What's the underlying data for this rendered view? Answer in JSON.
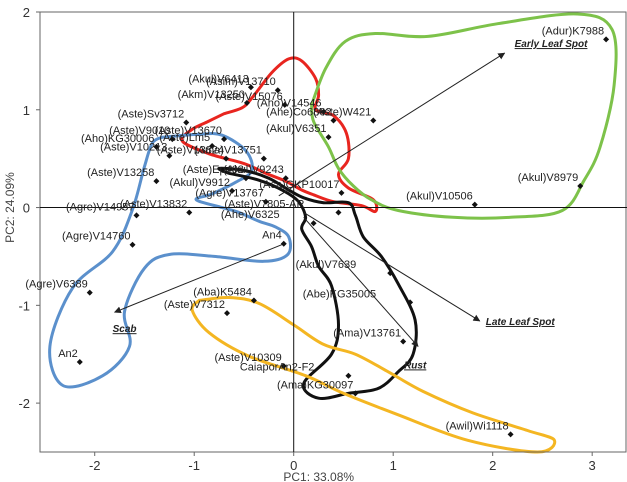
{
  "chart_data": {
    "type": "scatter",
    "title": "",
    "xlabel": "PC1: 33.08%",
    "ylabel": "PC2: 24.09%",
    "xlim": [
      -2.55,
      3.35
    ],
    "ylim": [
      -2.5,
      2.0
    ],
    "xticks": [
      -2,
      -1,
      0,
      1,
      2,
      3
    ],
    "yticks": [
      -2,
      -1,
      0,
      1,
      2
    ],
    "grid": false,
    "points": [
      {
        "label": "(Adur)K7988",
        "x": 3.14,
        "y": 1.72
      },
      {
        "label": "(Akul)V8979",
        "x": 2.88,
        "y": 0.22
      },
      {
        "label": "(Akul)V10506",
        "x": 1.82,
        "y": 0.03
      },
      {
        "label": "(Akul)V6413",
        "x": -0.43,
        "y": 1.23
      },
      {
        "label": "(Asim)V13710",
        "x": -0.16,
        "y": 1.2
      },
      {
        "label": "(Akm)V13250",
        "x": -0.47,
        "y": 1.07
      },
      {
        "label": "(Aste)V15076",
        "x": -0.09,
        "y": 1.05
      },
      {
        "label": "(Aho)V14546",
        "x": 0.3,
        "y": 0.98
      },
      {
        "label": "(Ahe)Co6862",
        "x": 0.4,
        "y": 0.89
      },
      {
        "label": "(Aste)W421",
        "x": 0.8,
        "y": 0.89
      },
      {
        "label": "(Aste)Sv3712",
        "x": -1.08,
        "y": 0.87
      },
      {
        "label": "(Aste)V9010",
        "x": -1.22,
        "y": 0.7
      },
      {
        "label": "(Aste)V13670",
        "x": -0.7,
        "y": 0.7
      },
      {
        "label": "(Akul)V6351",
        "x": 0.35,
        "y": 0.72
      },
      {
        "label": "(Aho)KG30006",
        "x": -1.38,
        "y": 0.62
      },
      {
        "label": "(Aste)Lm5",
        "x": -0.82,
        "y": 0.63
      },
      {
        "label": "(Aste)V10213",
        "x": -1.25,
        "y": 0.53
      },
      {
        "label": "(Ama)V13751",
        "x": -0.3,
        "y": 0.5
      },
      {
        "label": "(Aste)V13824",
        "x": -0.68,
        "y": 0.5
      },
      {
        "label": "(Aste)V13258",
        "x": -1.38,
        "y": 0.27
      },
      {
        "label": "(Aste)Ep408",
        "x": -0.48,
        "y": 0.3
      },
      {
        "label": "(Akul)V9243",
        "x": -0.08,
        "y": 0.3
      },
      {
        "label": "(Akul)V9912",
        "x": -0.62,
        "y": 0.17
      },
      {
        "label": "(Aca)GKP10017",
        "x": 0.48,
        "y": 0.15
      },
      {
        "label": "(Agre)V13767",
        "x": -0.28,
        "y": 0.06
      },
      {
        "label": "(Agre)V14957",
        "x": -1.58,
        "y": -0.08
      },
      {
        "label": "(Aste)V13832",
        "x": -1.05,
        "y": -0.05
      },
      {
        "label": "(Aste)V7805-AR",
        "x": 0.45,
        "y": -0.05
      },
      {
        "label": "(Ahe)V6325",
        "x": 0.2,
        "y": -0.16
      },
      {
        "label": "(Agre)V14760",
        "x": -1.62,
        "y": -0.38
      },
      {
        "label": "An4",
        "x": -0.1,
        "y": -0.37
      },
      {
        "label": "(Akul)V7639",
        "x": 0.97,
        "y": -0.67
      },
      {
        "label": "(Agre)V6389",
        "x": -2.05,
        "y": -0.87
      },
      {
        "label": "(Abe)KG35005",
        "x": 1.17,
        "y": -0.97
      },
      {
        "label": "(Aba)K5484",
        "x": -0.4,
        "y": -0.95
      },
      {
        "label": "(Aste)V7312",
        "x": -0.67,
        "y": -1.08
      },
      {
        "label": "(Ama)V13761",
        "x": 1.1,
        "y": -1.37
      },
      {
        "label": "An2",
        "x": -2.15,
        "y": -1.58
      },
      {
        "label": "(Aste)V10309",
        "x": -0.1,
        "y": -1.62
      },
      {
        "label": "CaiaporAn2-F2",
        "x": 0.55,
        "y": -1.72
      },
      {
        "label": "(Ama)KG30097",
        "x": 0.62,
        "y": -1.9
      },
      {
        "label": "(Awil)Wi1118",
        "x": 2.18,
        "y": -2.32
      }
    ],
    "arrows": [
      {
        "label": "Early Leaf Spot",
        "from": [
          -0.15,
          0.12
        ],
        "to": [
          2.12,
          1.58
        ]
      },
      {
        "label": "Late Leaf Spot",
        "from": [
          0.1,
          -0.05
        ],
        "to": [
          1.87,
          -1.16
        ]
      },
      {
        "label": "Rust",
        "from": [
          0.1,
          -0.1
        ],
        "to": [
          1.25,
          -1.42
        ]
      },
      {
        "label": "Scab",
        "from": [
          -0.12,
          -0.38
        ],
        "to": [
          -1.8,
          -1.07
        ]
      }
    ],
    "clusters": [
      {
        "color": "#e8251f",
        "path": [
          [
            -0.7,
            0.96
          ],
          [
            -0.52,
            1.02
          ],
          [
            -0.42,
            1.12
          ],
          [
            -0.22,
            1.38
          ],
          [
            -0.05,
            1.52
          ],
          [
            0.08,
            1.5
          ],
          [
            0.22,
            1.32
          ],
          [
            0.25,
            1.15
          ],
          [
            0.22,
            1.0
          ],
          [
            0.4,
            0.94
          ],
          [
            0.53,
            0.76
          ],
          [
            0.55,
            0.5
          ],
          [
            0.45,
            0.34
          ],
          [
            0.55,
            0.2
          ],
          [
            0.8,
            0.08
          ],
          [
            0.82,
            -0.04
          ],
          [
            0.68,
            0.02
          ],
          [
            0.4,
            0.06
          ],
          [
            0.2,
            0.13
          ],
          [
            0.08,
            0.18
          ],
          [
            -0.08,
            0.27
          ],
          [
            -0.28,
            0.35
          ],
          [
            -0.5,
            0.45
          ],
          [
            -0.85,
            0.55
          ],
          [
            -1.12,
            0.68
          ],
          [
            -1.02,
            0.8
          ],
          [
            -0.86,
            0.88
          ],
          [
            -0.7,
            0.96
          ]
        ]
      },
      {
        "color": "#7dc24a",
        "path": [
          [
            0.18,
            1.05
          ],
          [
            0.32,
            1.42
          ],
          [
            0.52,
            1.7
          ],
          [
            0.82,
            1.78
          ],
          [
            1.35,
            1.75
          ],
          [
            2.05,
            1.88
          ],
          [
            2.85,
            1.98
          ],
          [
            3.2,
            1.82
          ],
          [
            3.22,
            1.25
          ],
          [
            3.08,
            0.62
          ],
          [
            2.92,
            0.28
          ],
          [
            2.7,
            -0.03
          ],
          [
            2.18,
            -0.1
          ],
          [
            1.6,
            -0.1
          ],
          [
            1.05,
            -0.03
          ],
          [
            0.78,
            0.08
          ],
          [
            0.6,
            0.22
          ],
          [
            0.45,
            0.4
          ],
          [
            0.35,
            0.62
          ],
          [
            0.2,
            0.88
          ],
          [
            0.18,
            1.05
          ]
        ]
      },
      {
        "color": "#5b90cc",
        "path": [
          [
            -1.32,
            0.72
          ],
          [
            -0.95,
            0.75
          ],
          [
            -0.72,
            0.74
          ],
          [
            -0.48,
            0.58
          ],
          [
            -0.42,
            0.38
          ],
          [
            -0.58,
            0.26
          ],
          [
            -0.82,
            0.14
          ],
          [
            -0.98,
            0.08
          ],
          [
            -0.72,
            0.0
          ],
          [
            -0.55,
            -0.05
          ],
          [
            -0.35,
            -0.14
          ],
          [
            -0.18,
            -0.2
          ],
          [
            -0.05,
            -0.3
          ],
          [
            -0.06,
            -0.48
          ],
          [
            -0.3,
            -0.55
          ],
          [
            -0.8,
            -0.5
          ],
          [
            -1.25,
            -0.48
          ],
          [
            -1.5,
            -0.62
          ],
          [
            -1.7,
            -1.06
          ],
          [
            -1.65,
            -1.42
          ],
          [
            -1.92,
            -1.72
          ],
          [
            -2.32,
            -1.82
          ],
          [
            -2.45,
            -1.42
          ],
          [
            -2.22,
            -0.82
          ],
          [
            -1.82,
            -0.45
          ],
          [
            -1.62,
            -0.02
          ],
          [
            -1.5,
            0.42
          ],
          [
            -1.42,
            0.66
          ],
          [
            -1.32,
            0.72
          ]
        ]
      },
      {
        "color": "#111111",
        "path": [
          [
            -0.65,
            0.35
          ],
          [
            -0.35,
            0.28
          ],
          [
            -0.1,
            0.17
          ],
          [
            0.05,
            0.06
          ],
          [
            0.12,
            -0.1
          ],
          [
            0.08,
            -0.22
          ],
          [
            0.18,
            -0.4
          ],
          [
            0.25,
            -0.6
          ],
          [
            0.38,
            -0.8
          ],
          [
            0.45,
            -1.2
          ],
          [
            0.38,
            -1.5
          ],
          [
            0.1,
            -1.8
          ],
          [
            0.25,
            -1.95
          ],
          [
            0.55,
            -1.9
          ],
          [
            0.85,
            -1.85
          ],
          [
            1.05,
            -1.68
          ],
          [
            1.2,
            -1.5
          ],
          [
            1.22,
            -1.15
          ],
          [
            1.05,
            -0.78
          ],
          [
            0.88,
            -0.5
          ],
          [
            0.7,
            -0.3
          ],
          [
            0.62,
            -0.08
          ],
          [
            0.55,
            0.05
          ],
          [
            0.3,
            0.05
          ],
          [
            0.1,
            0.1
          ],
          [
            -0.05,
            0.18
          ],
          [
            -0.25,
            0.3
          ],
          [
            -0.5,
            0.38
          ],
          [
            -0.75,
            0.4
          ],
          [
            -0.65,
            0.35
          ]
        ]
      },
      {
        "color": "#f4b622",
        "path": [
          [
            -0.95,
            -0.95
          ],
          [
            -0.65,
            -0.92
          ],
          [
            -0.35,
            -0.98
          ],
          [
            0.0,
            -1.2
          ],
          [
            0.3,
            -1.4
          ],
          [
            0.62,
            -1.5
          ],
          [
            0.95,
            -1.68
          ],
          [
            1.3,
            -1.88
          ],
          [
            1.8,
            -2.1
          ],
          [
            2.35,
            -2.28
          ],
          [
            2.62,
            -2.38
          ],
          [
            2.45,
            -2.5
          ],
          [
            1.75,
            -2.38
          ],
          [
            1.05,
            -2.12
          ],
          [
            0.5,
            -1.9
          ],
          [
            0.12,
            -1.72
          ],
          [
            -0.45,
            -1.52
          ],
          [
            -0.85,
            -1.28
          ],
          [
            -1.02,
            -1.05
          ],
          [
            -0.95,
            -0.95
          ]
        ]
      }
    ]
  }
}
